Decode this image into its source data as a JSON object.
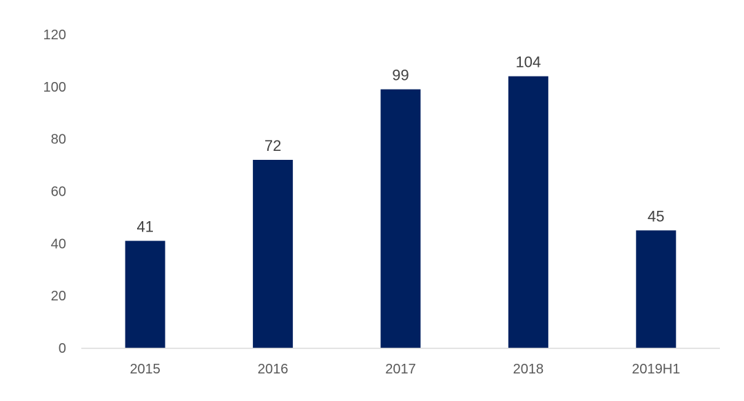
{
  "chart_data": {
    "type": "bar",
    "categories": [
      "2015",
      "2016",
      "2017",
      "2018",
      "2019H1"
    ],
    "values": [
      41,
      72,
      99,
      104,
      45
    ],
    "data_labels": [
      "41",
      "72",
      "99",
      "104",
      "45"
    ],
    "title": "",
    "xlabel": "",
    "ylabel": "",
    "ylim": [
      0,
      120
    ],
    "yticks": [
      "0",
      "20",
      "40",
      "60",
      "80",
      "100",
      "120"
    ],
    "grid": false,
    "legend": "none",
    "colors": {
      "bar": "#002060",
      "axis": "#d9d9d9",
      "tick_text": "#595959",
      "label_text": "#404040"
    }
  }
}
